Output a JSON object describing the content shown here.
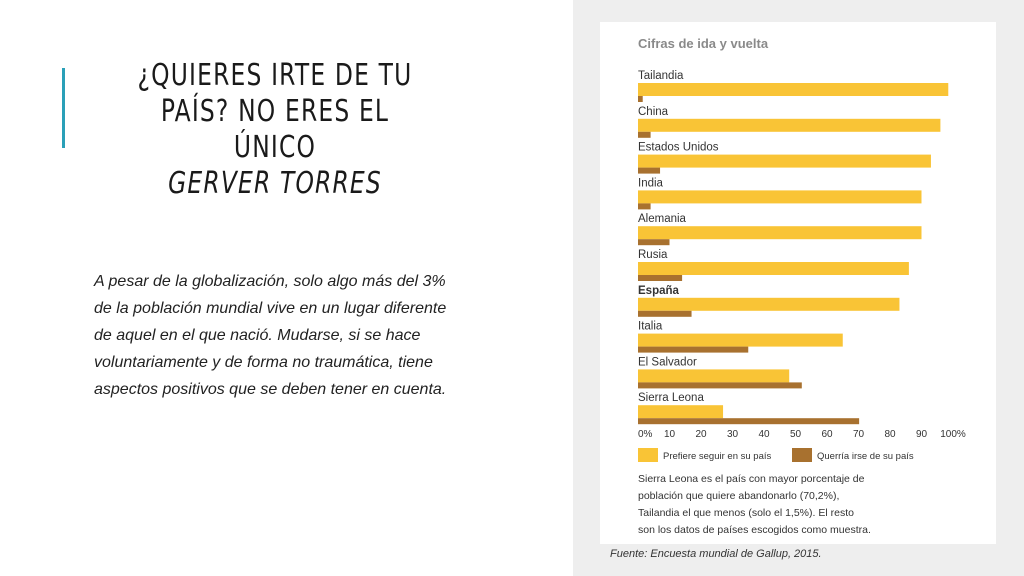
{
  "slide": {
    "title_lines": [
      "¿QUIERES IRTE DE TU",
      "PAÍS? NO ERES EL ÚNICO"
    ],
    "author": "GERVER TORRES",
    "body": "A pesar de la globalización, solo algo más del 3% de la población mundial vive en un lugar diferente de aquel en el que nació. Mudarse, si se hace voluntariamente y de forma no traumática, tiene aspectos positivos que se deben tener en cuenta.",
    "accent_color": "#2aa0b8"
  },
  "chart_data": {
    "type": "bar",
    "orientation": "horizontal",
    "title": "Cifras de ida y vuelta",
    "categories": [
      "Tailandia",
      "China",
      "Estados Unidos",
      "India",
      "Alemania",
      "Rusia",
      "España",
      "Italia",
      "El Salvador",
      "Sierra Leona"
    ],
    "highlighted_category": "España",
    "series": [
      {
        "name": "Prefiere seguir en su país",
        "color": "#f9c436",
        "values": [
          98.5,
          96,
          93,
          90,
          90,
          86,
          83,
          65,
          48,
          27
        ]
      },
      {
        "name": "Querría irse de su país",
        "color": "#a8712f",
        "values": [
          1.5,
          4,
          7,
          4,
          10,
          14,
          17,
          35,
          52,
          70.2
        ]
      }
    ],
    "xlim": [
      0,
      100
    ],
    "x_ticks": [
      "0%",
      "10",
      "20",
      "30",
      "40",
      "50",
      "60",
      "70",
      "80",
      "90",
      "100%"
    ],
    "legend_position": "bottom",
    "note": "Sierra Leona es el país con mayor porcentaje de población que quiere abandonarlo (70,2%), Tailandia el que menos (solo el 1,5%). El resto son los datos de países escogidos como muestra.",
    "source": "Fuente: Encuesta mundial de Gallup, 2015."
  }
}
